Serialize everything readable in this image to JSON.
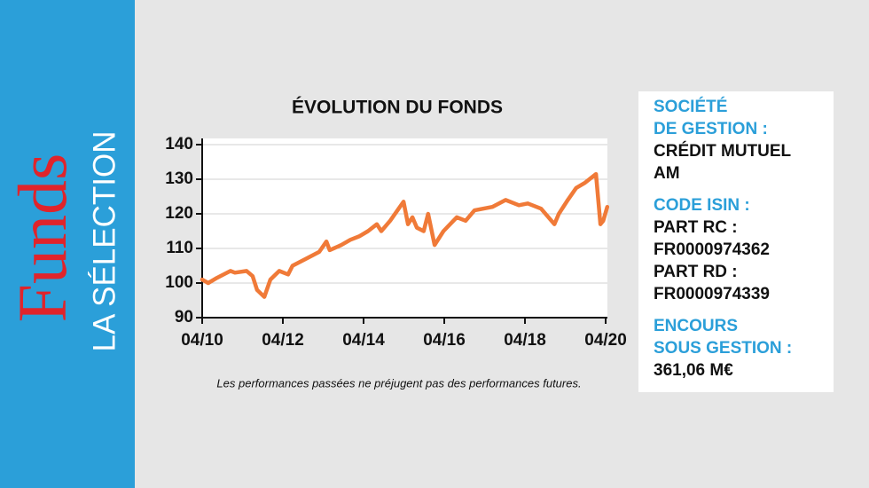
{
  "banner": {
    "brand": "Funds",
    "subtitle": "LA SÉLECTION"
  },
  "chart_data": {
    "type": "line",
    "title": "ÉVOLUTION DU FONDS",
    "note": "Les performances passées ne préjugent pas des performances futures.",
    "color": "#f07a38",
    "grid": true,
    "x": [
      2010.25,
      2010.4,
      2010.62,
      2010.95,
      2011.06,
      2011.35,
      2011.5,
      2011.61,
      2011.79,
      2011.94,
      2012.16,
      2012.38,
      2012.49,
      2012.82,
      2013.15,
      2013.33,
      2013.41,
      2013.7,
      2013.92,
      2014.14,
      2014.36,
      2014.58,
      2014.69,
      2014.91,
      2015.24,
      2015.35,
      2015.46,
      2015.57,
      2015.74,
      2015.85,
      2016.01,
      2016.23,
      2016.56,
      2016.78,
      2017.0,
      2017.44,
      2017.77,
      2018.1,
      2018.32,
      2018.65,
      2018.98,
      2019.09,
      2019.31,
      2019.52,
      2019.74,
      2020.01,
      2020.12,
      2020.19,
      2020.29
    ],
    "values": [
      101,
      100,
      101.5,
      103.5,
      103,
      103.5,
      102,
      98,
      96,
      101,
      103.5,
      102.5,
      105,
      107,
      109,
      112,
      109.5,
      111,
      112.5,
      113.5,
      115,
      117,
      115,
      118,
      123.5,
      117,
      119,
      116,
      115,
      120,
      111,
      115,
      119,
      118,
      121,
      122,
      124,
      122.5,
      123,
      121.5,
      117,
      120,
      124,
      127.5,
      129,
      131.5,
      117,
      118,
      122
    ],
    "xlim": [
      2010.25,
      2020.3
    ],
    "xticks": [
      {
        "value": 2010.25,
        "label": "04/10"
      },
      {
        "value": 2012.25,
        "label": "04/12"
      },
      {
        "value": 2014.25,
        "label": "04/14"
      },
      {
        "value": 2016.25,
        "label": "04/16"
      },
      {
        "value": 2018.25,
        "label": "04/18"
      },
      {
        "value": 2020.25,
        "label": "04/20"
      }
    ],
    "ylim": [
      90,
      140
    ],
    "yticks": [
      90,
      100,
      110,
      120,
      130,
      140
    ]
  },
  "info": [
    {
      "heading": [
        "SOCIÉTÉ",
        "DE GESTION :"
      ],
      "text": [
        "CRÉDIT MUTUEL",
        "AM"
      ]
    },
    {
      "heading": [
        "CODE ISIN :"
      ],
      "text": [
        "PART RC :",
        "FR0000974362",
        "PART RD :",
        "FR0000974339"
      ]
    },
    {
      "heading": [
        "ENCOURS",
        "SOUS GESTION :"
      ],
      "text": [
        "361,06 M€"
      ]
    }
  ]
}
